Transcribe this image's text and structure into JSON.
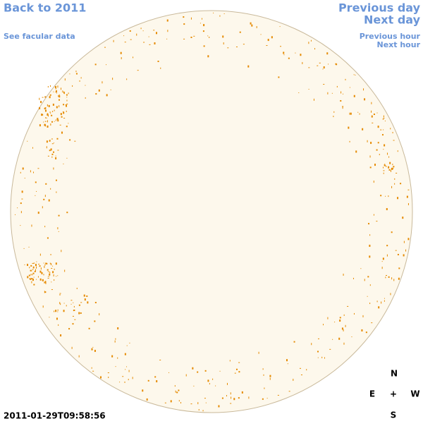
{
  "links": {
    "back": "Back to 2011",
    "facular": "See facular data",
    "previous_day": "Previous day",
    "next_day": "Next day",
    "previous_hour": "Previous hour",
    "next_hour": "Next hour"
  },
  "timestamp": "2011-01-29T09:58:56",
  "compass": {
    "north": "N",
    "east": "E",
    "center": "+",
    "west": "W",
    "south": "S"
  }
}
